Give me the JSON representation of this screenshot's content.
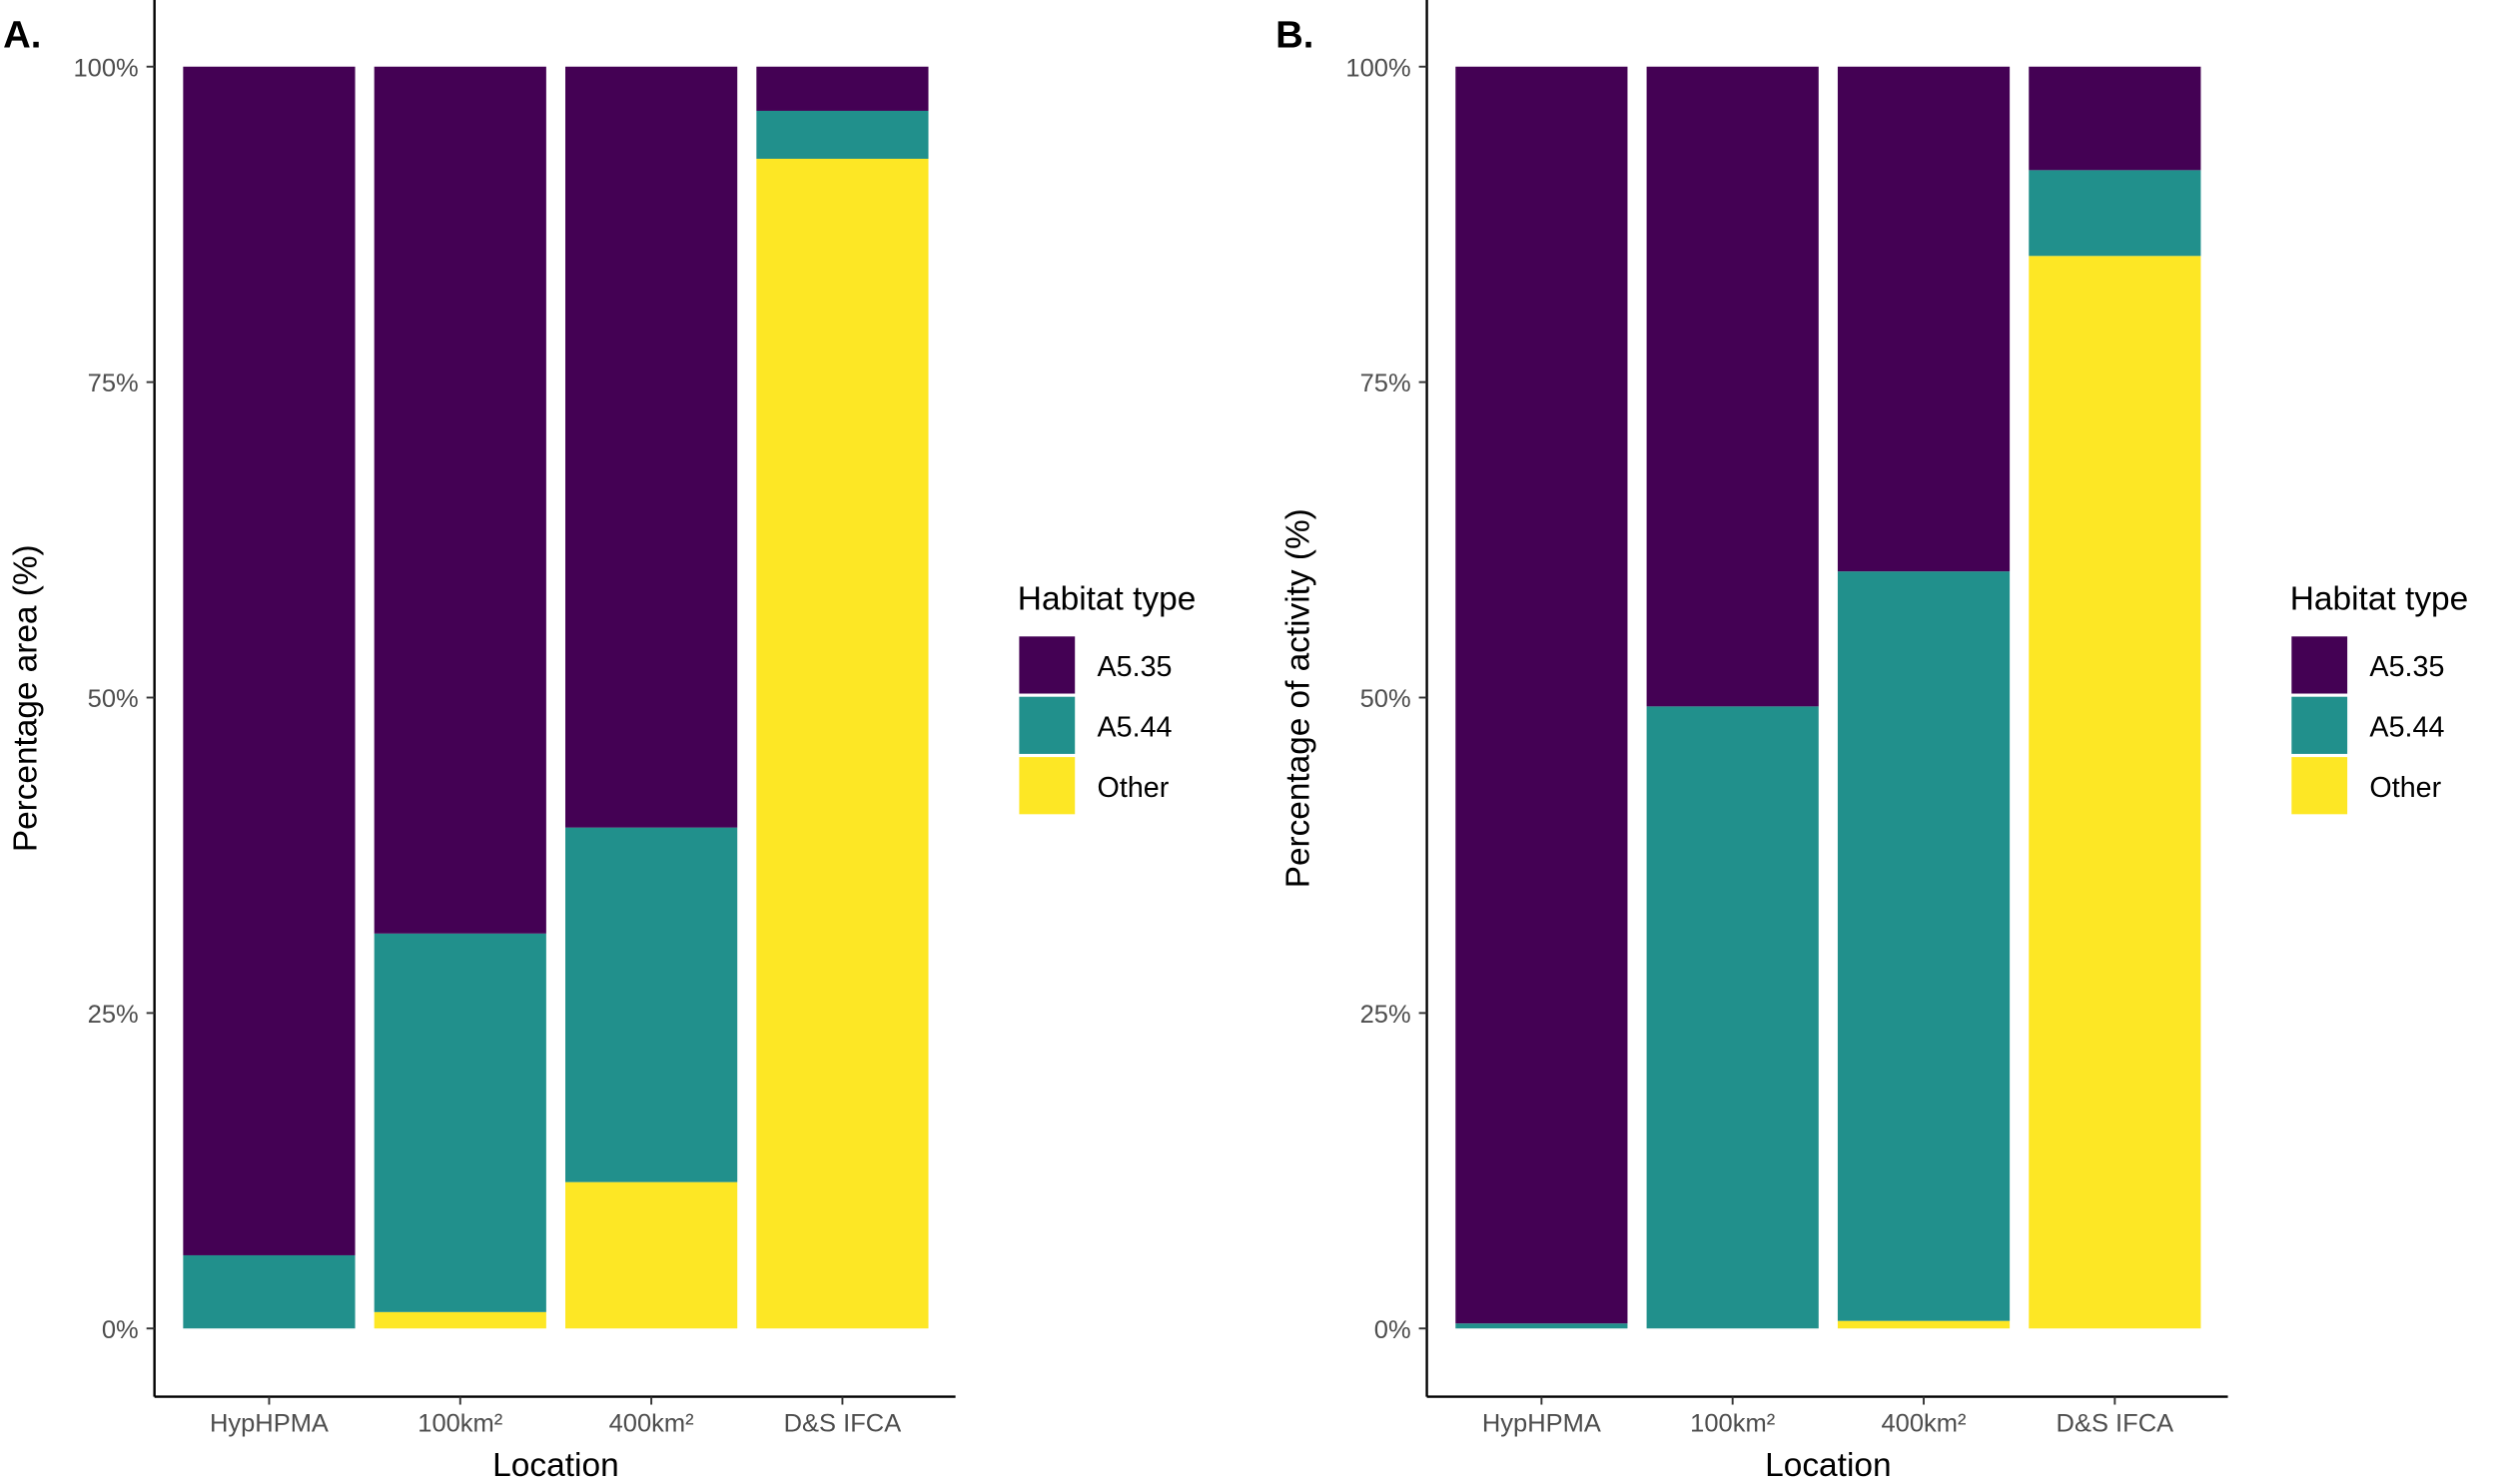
{
  "chart_data": [
    {
      "type": "bar",
      "stacked": true,
      "panel_label": "A.",
      "xlabel": "Location",
      "ylabel": "Percentage area (%)",
      "categories": [
        "HypHPMA",
        "100km²",
        "400km²",
        "D&S IFCA"
      ],
      "yticks": [
        "0%",
        "25%",
        "50%",
        "75%",
        "100%"
      ],
      "ylim": [
        0,
        100
      ],
      "legend_title": "Habitat type",
      "legend_position": "right",
      "series": [
        {
          "name": "Other",
          "color": "#FDE725",
          "values": [
            0,
            1.3,
            11.6,
            92.7
          ]
        },
        {
          "name": "A5.44",
          "color": "#21908C",
          "values": [
            5.8,
            30.0,
            28.1,
            3.8
          ]
        },
        {
          "name": "A5.35",
          "color": "#440154",
          "values": [
            94.2,
            68.7,
            60.3,
            3.5
          ]
        }
      ],
      "legend_order": [
        "A5.35",
        "A5.44",
        "Other"
      ]
    },
    {
      "type": "bar",
      "stacked": true,
      "panel_label": "B.",
      "xlabel": "Location",
      "ylabel": "Percentage of activity (%)",
      "categories": [
        "HypHPMA",
        "100km²",
        "400km²",
        "D&S IFCA"
      ],
      "yticks": [
        "0%",
        "25%",
        "50%",
        "75%",
        "100%"
      ],
      "ylim": [
        0,
        100
      ],
      "legend_title": "Habitat type",
      "legend_position": "right",
      "series": [
        {
          "name": "Other",
          "color": "#FDE725",
          "values": [
            0,
            0,
            0.6,
            85.0
          ]
        },
        {
          "name": "A5.44",
          "color": "#21908C",
          "values": [
            0.4,
            49.3,
            59.4,
            6.8
          ]
        },
        {
          "name": "A5.35",
          "color": "#440154",
          "values": [
            99.6,
            50.7,
            40.0,
            8.2
          ]
        }
      ],
      "legend_order": [
        "A5.35",
        "A5.44",
        "Other"
      ]
    }
  ]
}
